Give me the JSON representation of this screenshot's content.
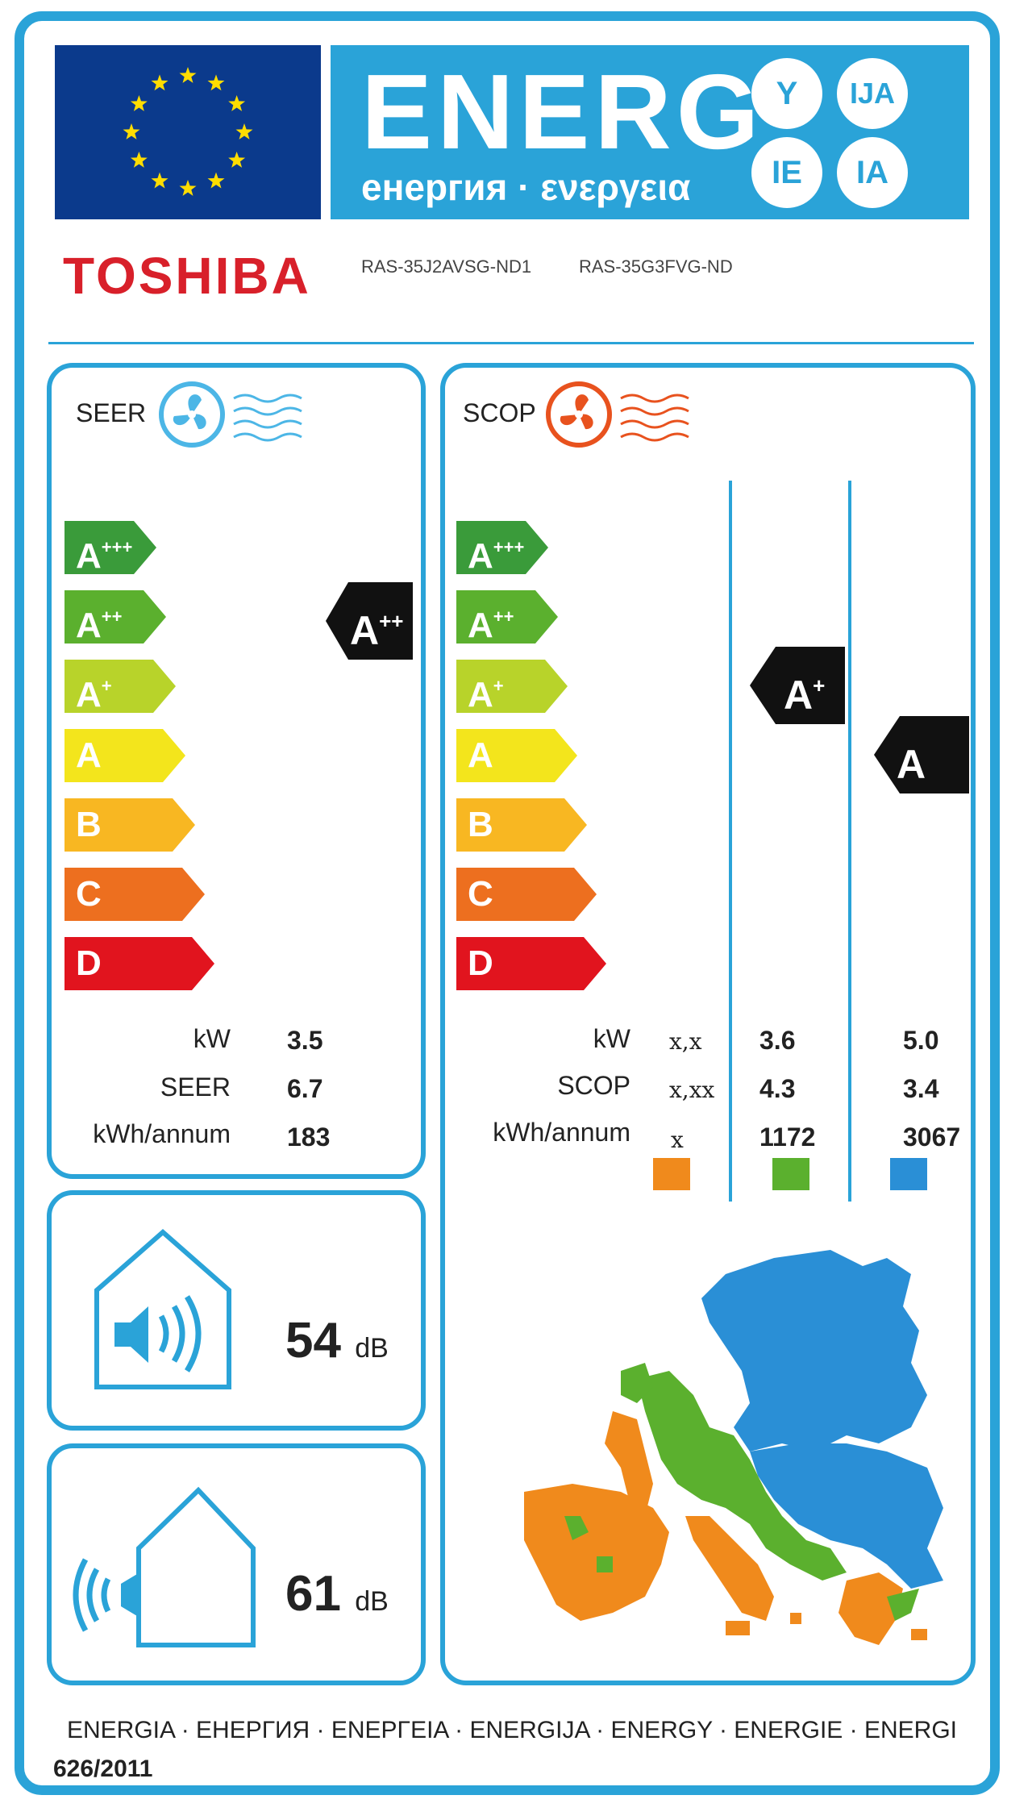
{
  "header": {
    "energ_title": "ENERG",
    "energ_subtitle": "енергия · ενεργεια",
    "lang_bubbles": [
      "Y",
      "IJA",
      "IE",
      "IA"
    ]
  },
  "product": {
    "brand": "TOSHIBA",
    "model_indoor": "RAS-35J2AVSG-ND1",
    "model_outdoor": "RAS-35G3FVG-ND"
  },
  "colors": {
    "accent": "#2aa3d8",
    "eu_blue": "#0b3a8c",
    "brand_red": "#d8202a",
    "zone_warmer": "#f08a1c",
    "zone_average": "#5bb02e",
    "zone_colder": "#2a8fd6"
  },
  "scale": [
    {
      "letter": "A",
      "plus": "+++",
      "color": "#3a9b3a"
    },
    {
      "letter": "A",
      "plus": "++",
      "color": "#5bb02e"
    },
    {
      "letter": "A",
      "plus": "+",
      "color": "#b8d32a"
    },
    {
      "letter": "A",
      "plus": "",
      "color": "#f3e51c"
    },
    {
      "letter": "B",
      "plus": "",
      "color": "#f8b722"
    },
    {
      "letter": "C",
      "plus": "",
      "color": "#ed6f1f"
    },
    {
      "letter": "D",
      "plus": "",
      "color": "#e1141e"
    }
  ],
  "seer": {
    "label": "SEER",
    "rating_letter": "A",
    "rating_plus": "++",
    "rows": [
      {
        "label": "kW",
        "value": "3.5"
      },
      {
        "label": "SEER",
        "value": "6.7"
      },
      {
        "label": "kWh/annum",
        "value": "183"
      }
    ]
  },
  "scop": {
    "label": "SCOP",
    "average_rating_letter": "A",
    "average_rating_plus": "+",
    "colder_rating_letter": "A",
    "colder_rating_plus": "",
    "rows": [
      {
        "label": "kW",
        "warmer": "x,x",
        "average": "3.6",
        "colder": "5.0"
      },
      {
        "label": "SCOP",
        "warmer": "x,xx",
        "average": "4.3",
        "colder": "3.4"
      },
      {
        "label": "kWh/annum",
        "warmer": "x",
        "average": "1172",
        "colder": "3067"
      }
    ]
  },
  "noise": {
    "indoor_value": "54",
    "outdoor_value": "61",
    "unit": "dB"
  },
  "footer": {
    "languages": "ENERGIA · ЕНЕРГИЯ · ΕΝΕΡΓΕΙΑ · ENERGIJA · ENERGY · ENERGIE · ENERGI",
    "regulation": "626/2011"
  }
}
